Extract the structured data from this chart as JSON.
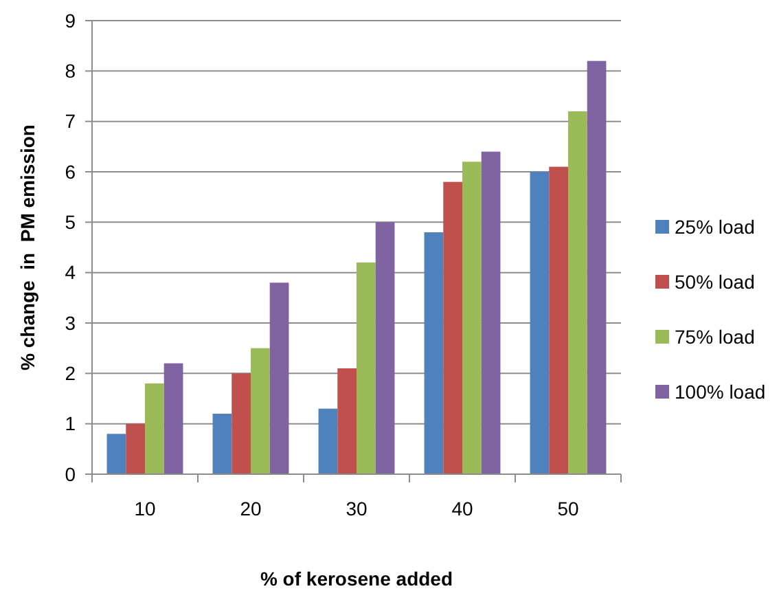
{
  "chart_data": {
    "type": "bar",
    "xlabel": "% of kerosene added",
    "ylabel": "% change  in  PM emission",
    "categories": [
      "10",
      "20",
      "30",
      "40",
      "50"
    ],
    "series": [
      {
        "name": "25% load",
        "color": "#4f81bd",
        "values": [
          0.8,
          1.2,
          1.3,
          4.8,
          6.0
        ]
      },
      {
        "name": "50% load",
        "color": "#c0504d",
        "values": [
          1.0,
          2.0,
          2.1,
          5.8,
          6.1
        ]
      },
      {
        "name": "75% load",
        "color": "#9bbb59",
        "values": [
          1.8,
          2.5,
          4.2,
          6.2,
          7.2
        ]
      },
      {
        "name": "100% load",
        "color": "#8064a2",
        "values": [
          2.2,
          3.8,
          5.0,
          6.4,
          8.2
        ]
      }
    ],
    "ylim": [
      0,
      9
    ],
    "yticks": [
      0,
      1,
      2,
      3,
      4,
      5,
      6,
      7,
      8,
      9
    ],
    "grid": "y",
    "legend": "right"
  }
}
